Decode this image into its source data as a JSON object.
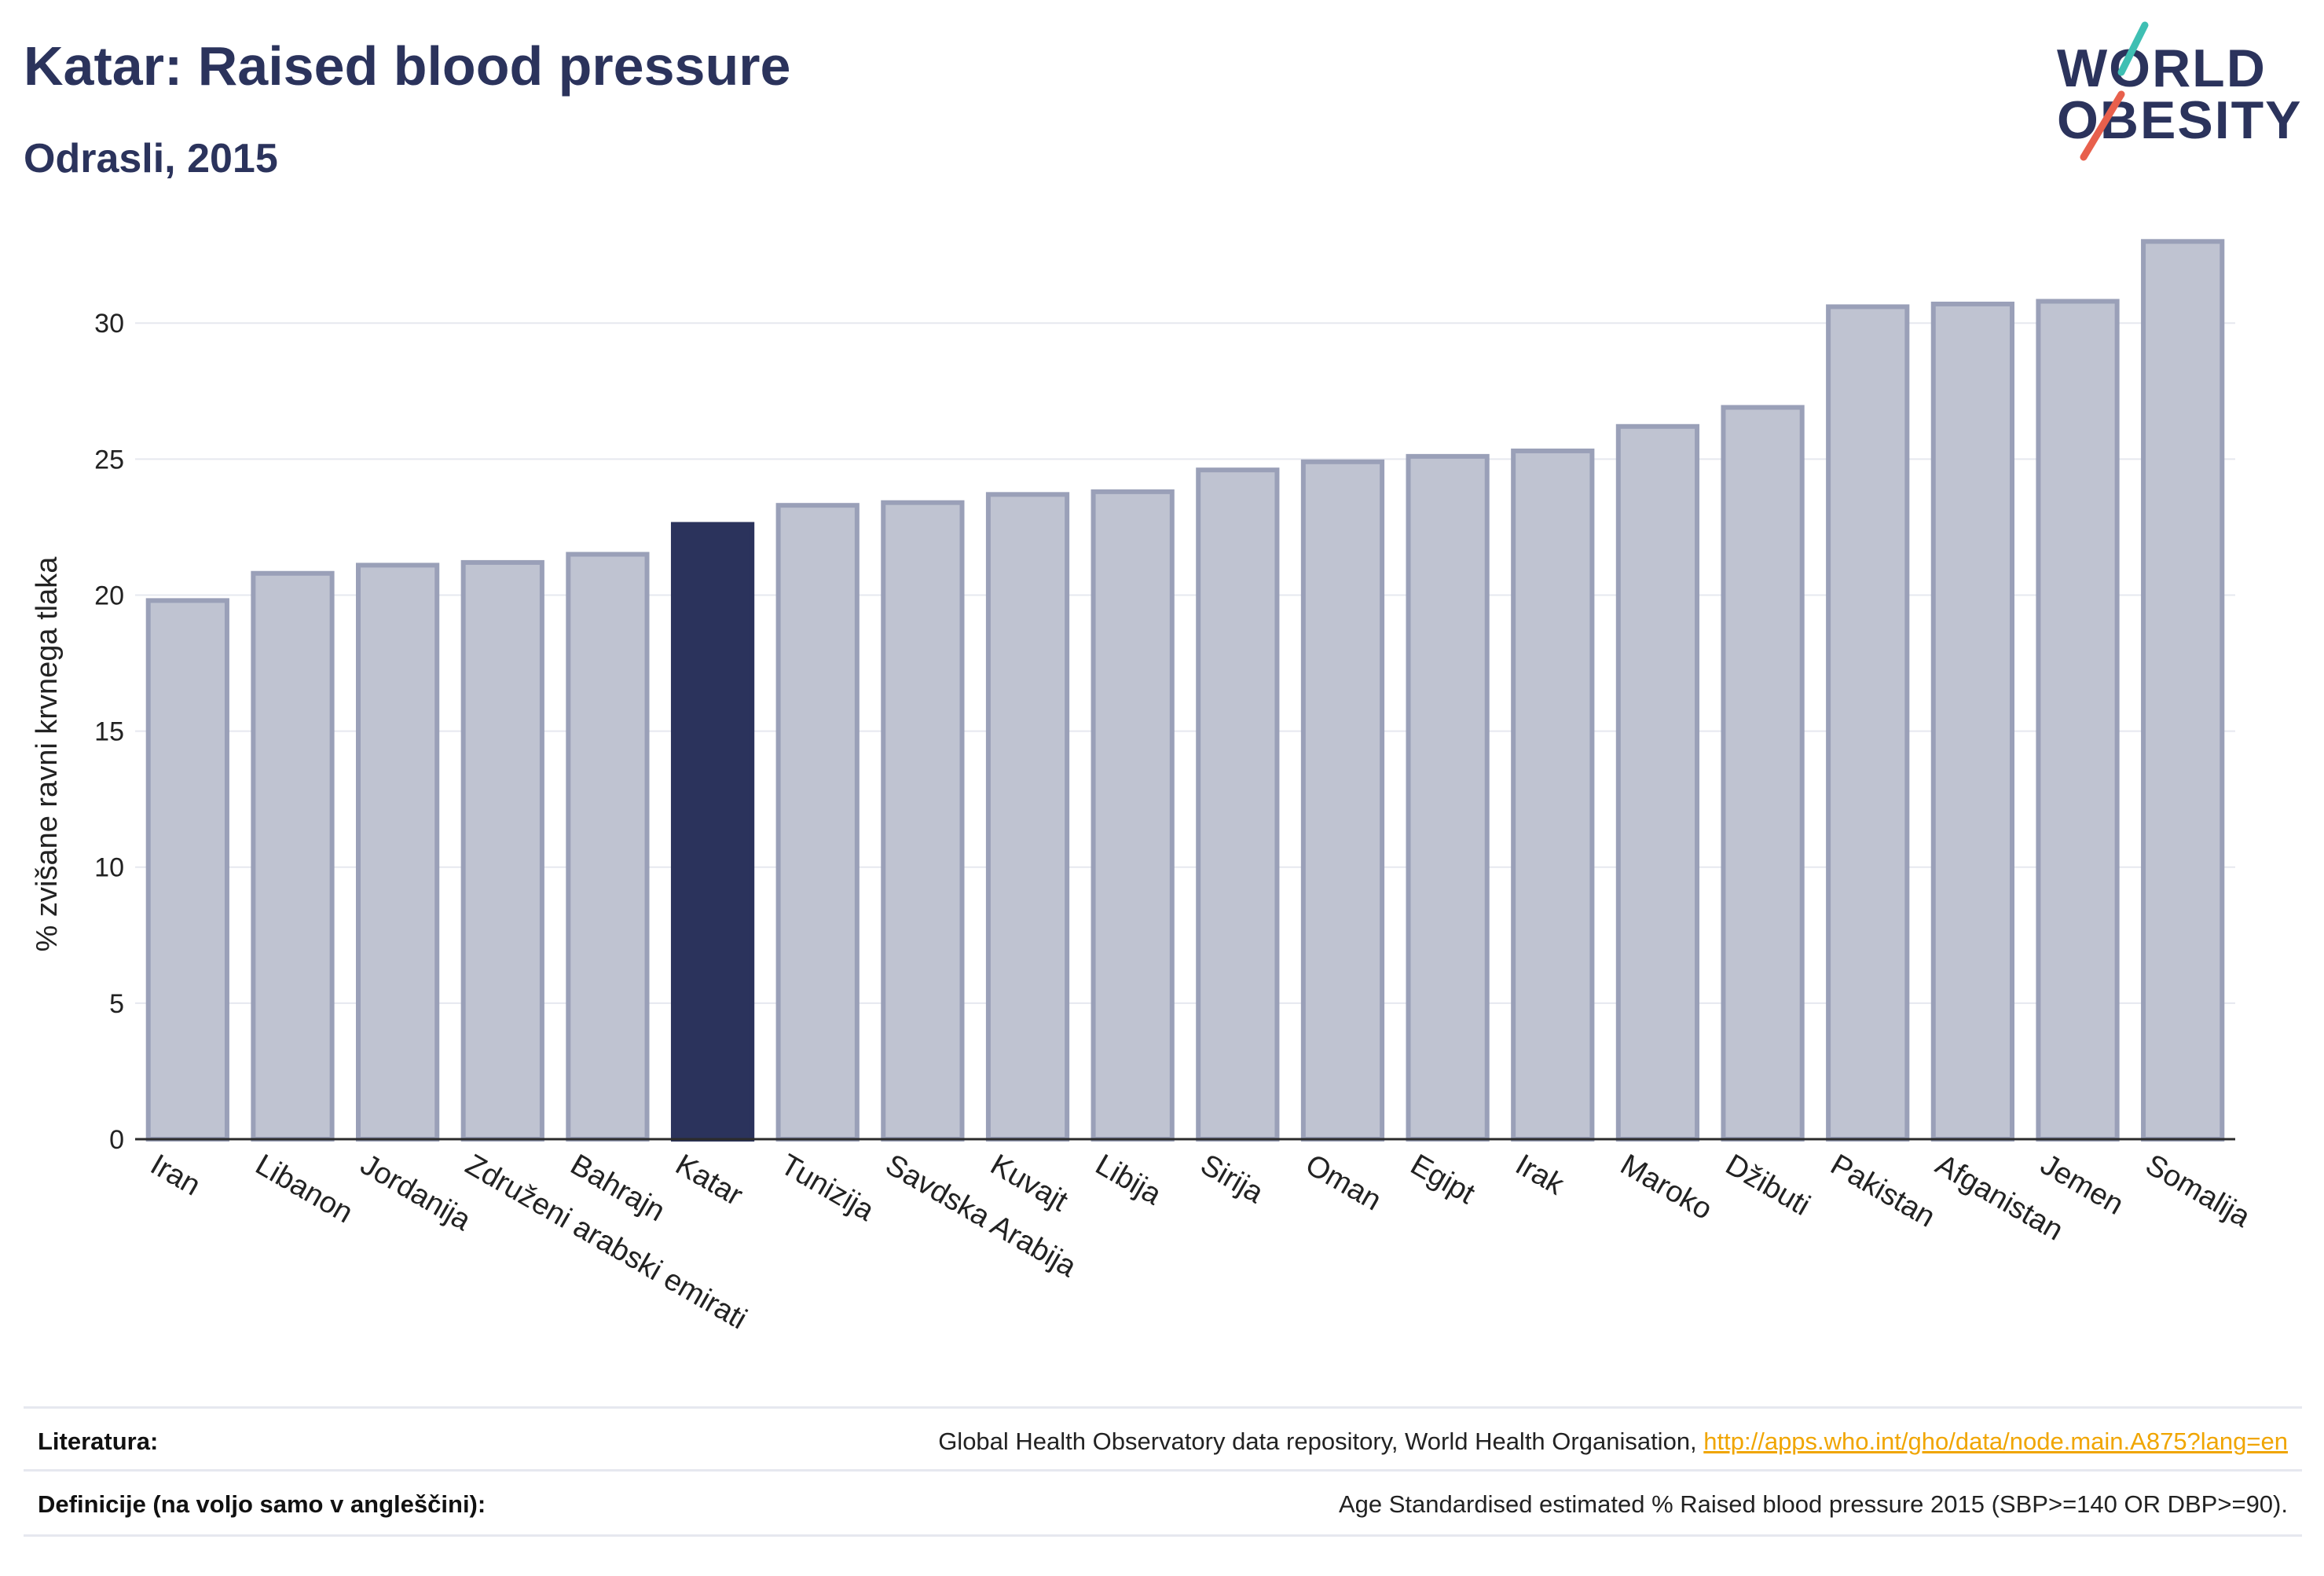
{
  "header": {
    "title": "Katar: Raised blood pressure",
    "subtitle": "Odrasli, 2015"
  },
  "logo": {
    "line1": "WORLD",
    "line2": "OBESITY",
    "brand_color": "#2b335c",
    "slash_colors": [
      "#3fbfb3",
      "#e8604c"
    ]
  },
  "chart_data": {
    "type": "bar",
    "title": "",
    "xlabel": "",
    "ylabel": "% zvišane ravni krvnega tlaka",
    "ylim": [
      0,
      33.5
    ],
    "yticks": [
      0,
      5,
      10,
      15,
      20,
      25,
      30
    ],
    "grid": true,
    "highlight": "Katar",
    "colors": {
      "bar": "#bfc3d1",
      "bar_edge": "#9aa0b8",
      "highlight": "#2b335c",
      "grid": "#e6e8ef"
    },
    "categories": [
      "Iran",
      "Libanon",
      "Jordanija",
      "Združeni arabski emirati",
      "Bahrajn",
      "Katar",
      "Tunizija",
      "Savdska Arabija",
      "Kuvajt",
      "Libija",
      "Sirija",
      "Oman",
      "Egipt",
      "Irak",
      "Maroko",
      "Džibuti",
      "Pakistan",
      "Afganistan",
      "Jemen",
      "Somalija"
    ],
    "values": [
      19.8,
      20.8,
      21.1,
      21.2,
      21.5,
      22.6,
      23.3,
      23.4,
      23.7,
      23.8,
      24.6,
      24.9,
      25.1,
      25.3,
      26.2,
      26.9,
      30.6,
      30.7,
      30.8,
      33.0
    ]
  },
  "footer": {
    "literature_label": "Literatura:",
    "literature_text": "Global Health Observatory data repository, World Health Organisation, ",
    "literature_link": "http://apps.who.int/gho/data/node.main.A875?lang=en",
    "definitions_label": "Definicije (na voljo samo v angleščini):",
    "definitions_text": "Age Standardised estimated % Raised blood pressure 2015 (SBP>=140 OR DBP>=90)."
  }
}
